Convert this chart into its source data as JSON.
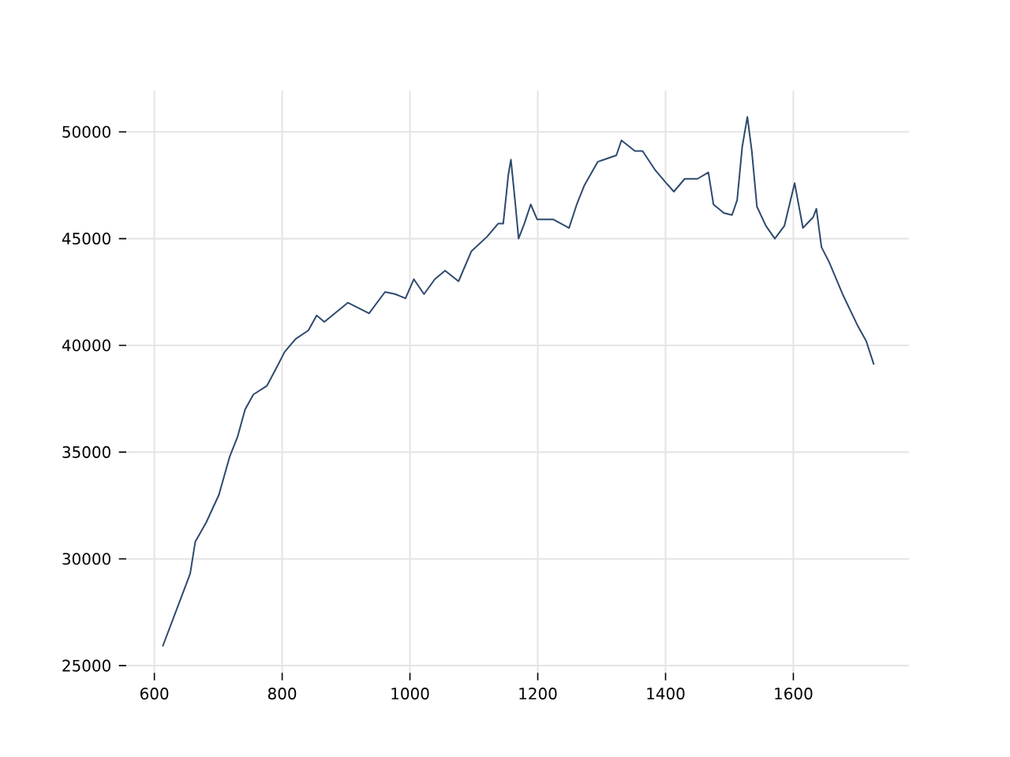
{
  "chart_data": {
    "type": "line",
    "x": [
      613,
      656,
      664,
      681,
      701,
      718,
      730,
      742,
      755,
      776,
      792,
      804,
      821,
      841,
      854,
      866,
      903,
      936,
      961,
      977,
      993,
      1006,
      1022,
      1039,
      1055,
      1076,
      1096,
      1121,
      1138,
      1146,
      1154,
      1158,
      1165,
      1170,
      1179,
      1189,
      1199,
      1224,
      1249,
      1261,
      1273,
      1294,
      1323,
      1331,
      1352,
      1364,
      1384,
      1401,
      1413,
      1430,
      1450,
      1467,
      1475,
      1491,
      1504,
      1512,
      1520,
      1528,
      1535,
      1543,
      1557,
      1571,
      1586,
      1602,
      1615,
      1631,
      1636,
      1644,
      1656,
      1677,
      1701,
      1714,
      1726
    ],
    "series": [
      {
        "color": "#2e4a6e",
        "values": [
          25900,
          29300,
          30800,
          31700,
          33000,
          34800,
          35700,
          37000,
          37700,
          38100,
          39000,
          39700,
          40300,
          40700,
          41400,
          41100,
          42000,
          41500,
          42500,
          42400,
          42200,
          43100,
          42400,
          43100,
          43500,
          43000,
          44400,
          45100,
          45700,
          45700,
          48000,
          48700,
          46600,
          45000,
          45700,
          46600,
          45900,
          45900,
          45500,
          46600,
          47500,
          48600,
          48900,
          49600,
          49100,
          49100,
          48200,
          47600,
          47200,
          47800,
          47800,
          48100,
          46600,
          46200,
          46100,
          46800,
          49300,
          50700,
          49100,
          46500,
          45600,
          45000,
          45600,
          47600,
          45500,
          46000,
          46400,
          44600,
          43900,
          42400,
          40900,
          40200,
          39100
        ]
      }
    ],
    "xlim": [
      556,
      1781
    ],
    "ylim": [
      24660,
      51940
    ],
    "xticks": [
      600,
      800,
      1000,
      1200,
      1400,
      1600
    ],
    "yticks": [
      25000,
      30000,
      35000,
      40000,
      45000,
      50000
    ],
    "grid": true
  }
}
